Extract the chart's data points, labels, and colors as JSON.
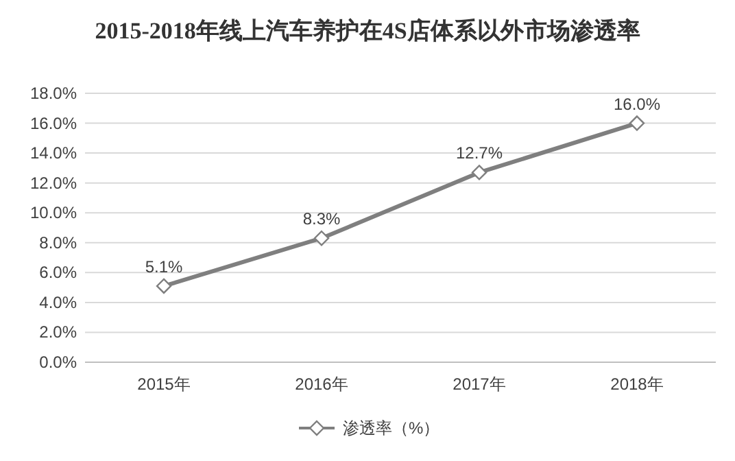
{
  "chart_data": {
    "type": "line",
    "title": "2015-2018年线上汽车养护在4S店体系以外市场渗透率",
    "categories": [
      "2015年",
      "2016年",
      "2017年",
      "2018年"
    ],
    "series": [
      {
        "name": "渗透率（%）",
        "color": "#7f7f7f",
        "values": [
          5.1,
          8.3,
          12.7,
          16.0
        ],
        "value_labels": [
          "5.1%",
          "8.3%",
          "12.7%",
          "16.0%"
        ]
      }
    ],
    "ylim": [
      0,
      18
    ],
    "yticks": [
      {
        "value": 0,
        "label": "0.0%"
      },
      {
        "value": 2,
        "label": "2.0%"
      },
      {
        "value": 4,
        "label": "4.0%"
      },
      {
        "value": 6,
        "label": "6.0%"
      },
      {
        "value": 8,
        "label": "8.0%"
      },
      {
        "value": 10,
        "label": "10.0%"
      },
      {
        "value": 12,
        "label": "12.0%"
      },
      {
        "value": 14,
        "label": "14.0%"
      },
      {
        "value": 16,
        "label": "16.0%"
      },
      {
        "value": 18,
        "label": "18.0%"
      }
    ],
    "grid": "y",
    "legend": "bottom",
    "marker": "diamond",
    "line_style": "solid"
  }
}
